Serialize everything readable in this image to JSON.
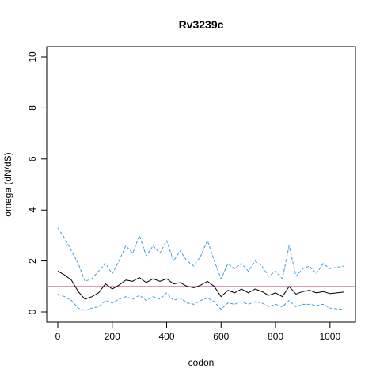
{
  "chart_data": {
    "type": "line",
    "title": "Rv3239c",
    "xlabel": "codon",
    "ylabel": "omega (dN/dS)",
    "xlim": [
      0,
      1050
    ],
    "ylim": [
      0,
      10
    ],
    "x_ticks": [
      0,
      200,
      400,
      600,
      800,
      1000
    ],
    "y_ticks": [
      0,
      2,
      4,
      6,
      8,
      10
    ],
    "grid": false,
    "reference_line": {
      "y": 1,
      "color": "#cc79a7"
    },
    "colors": {
      "mean": "#000000",
      "bounds": "#3a9fe0",
      "reference": "#cc79a7"
    },
    "x": [
      0,
      25,
      50,
      75,
      100,
      125,
      150,
      175,
      200,
      225,
      250,
      275,
      300,
      325,
      350,
      375,
      400,
      425,
      450,
      475,
      500,
      525,
      550,
      575,
      600,
      625,
      650,
      675,
      700,
      725,
      750,
      775,
      800,
      825,
      850,
      875,
      900,
      925,
      950,
      975,
      1000,
      1025,
      1050
    ],
    "series": [
      {
        "role": "upper",
        "style": "dashed",
        "values": [
          3.3,
          2.9,
          2.4,
          1.9,
          1.2,
          1.3,
          1.6,
          1.9,
          1.5,
          2.0,
          2.6,
          2.3,
          3.0,
          2.2,
          2.6,
          2.3,
          2.8,
          2.0,
          2.4,
          2.0,
          1.8,
          2.2,
          2.8,
          2.0,
          1.3,
          1.9,
          1.7,
          1.9,
          1.6,
          2.0,
          1.8,
          1.4,
          1.6,
          1.3,
          2.6,
          1.4,
          1.7,
          1.8,
          1.5,
          1.9,
          1.7,
          1.75,
          1.8
        ]
      },
      {
        "role": "mean",
        "style": "solid",
        "values": [
          1.6,
          1.45,
          1.25,
          0.8,
          0.5,
          0.6,
          0.75,
          1.1,
          0.9,
          1.05,
          1.25,
          1.2,
          1.35,
          1.15,
          1.3,
          1.2,
          1.3,
          1.1,
          1.15,
          1.0,
          0.95,
          1.05,
          1.2,
          1.0,
          0.6,
          0.85,
          0.75,
          0.9,
          0.75,
          0.9,
          0.8,
          0.65,
          0.75,
          0.6,
          1.0,
          0.7,
          0.8,
          0.85,
          0.75,
          0.8,
          0.72,
          0.75,
          0.78
        ]
      },
      {
        "role": "lower",
        "style": "dashed",
        "values": [
          0.7,
          0.6,
          0.45,
          0.15,
          0.05,
          0.15,
          0.2,
          0.45,
          0.35,
          0.5,
          0.6,
          0.5,
          0.65,
          0.45,
          0.6,
          0.5,
          0.75,
          0.45,
          0.55,
          0.35,
          0.3,
          0.45,
          0.55,
          0.4,
          0.1,
          0.35,
          0.3,
          0.4,
          0.3,
          0.4,
          0.35,
          0.2,
          0.3,
          0.2,
          0.45,
          0.2,
          0.3,
          0.3,
          0.25,
          0.3,
          0.15,
          0.12,
          0.1
        ]
      }
    ]
  }
}
